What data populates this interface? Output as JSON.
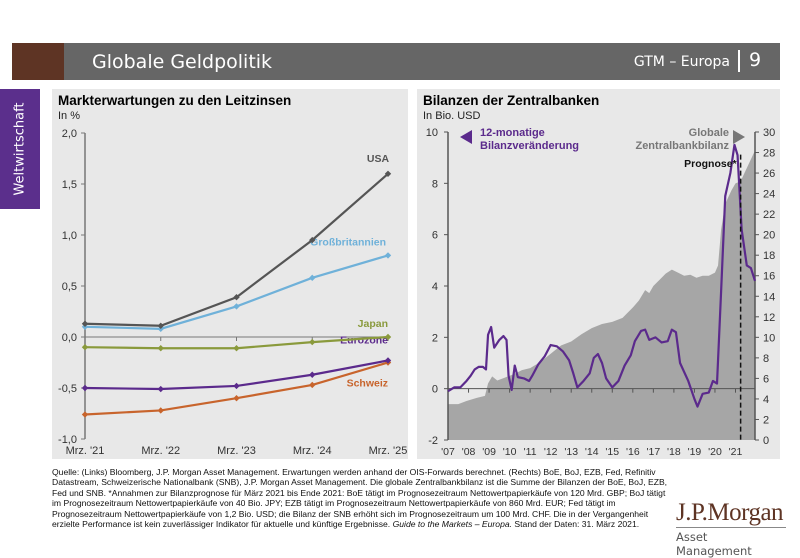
{
  "header": {
    "title": "Globale Geldpolitik",
    "series_label": "GTM – Europa",
    "page_number": "9"
  },
  "side_tab": {
    "label": "Weltwirtschaft"
  },
  "colors": {
    "header_bar": "#666666",
    "header_accent": "#5e3424",
    "side_tab": "#5b2f8c",
    "panel_bg": "#e8e8e8",
    "usa": "#555555",
    "uk": "#6fb1d9",
    "japan": "#8a9a3c",
    "eurozone": "#5b2a8c",
    "schweiz": "#c8642c",
    "balance_area": "#a6a6a6",
    "balance_change_line": "#5b2a8c"
  },
  "chart_data": [
    {
      "type": "line",
      "title": "Markterwartungen zu den Leitzinsen",
      "subtitle": "In %",
      "xlabel": "",
      "ylabel": "In %",
      "categories": [
        "Mrz. '21",
        "Mrz. '22",
        "Mrz. '23",
        "Mrz. '24",
        "Mrz. '25"
      ],
      "ylim": [
        -1.0,
        2.0
      ],
      "yticks": [
        -1.0,
        -0.5,
        0.0,
        0.5,
        1.0,
        1.5,
        2.0
      ],
      "ytick_labels": [
        "-1,0",
        "-0,5",
        "0,0",
        "0,5",
        "1,0",
        "1,5",
        "2,0"
      ],
      "grid": false,
      "series": [
        {
          "name": "USA",
          "color": "#555555",
          "values": [
            0.13,
            0.11,
            0.39,
            0.95,
            1.6
          ]
        },
        {
          "name": "Großbritannien",
          "color": "#6fb1d9",
          "values": [
            0.1,
            0.08,
            0.3,
            0.58,
            0.8
          ]
        },
        {
          "name": "Japan",
          "color": "#8a9a3c",
          "values": [
            -0.1,
            -0.11,
            -0.11,
            -0.05,
            0.0
          ]
        },
        {
          "name": "Eurozone",
          "color": "#5b2a8c",
          "values": [
            -0.5,
            -0.51,
            -0.48,
            -0.37,
            -0.23
          ]
        },
        {
          "name": "Schweiz",
          "color": "#c8642c",
          "values": [
            -0.76,
            -0.72,
            -0.6,
            -0.47,
            -0.25
          ]
        }
      ]
    },
    {
      "type": "area",
      "title": "Bilanzen der Zentralbanken",
      "subtitle": "In Bio. USD",
      "xlabel": "",
      "categories": [
        "'07",
        "'08",
        "'09",
        "'10",
        "'11",
        "'12",
        "'13",
        "'14",
        "'15",
        "'16",
        "'17",
        "'18",
        "'19",
        "'20",
        "'21"
      ],
      "x_range": [
        2007.0,
        2021.95
      ],
      "ylim_left": [
        -2,
        10
      ],
      "yticks_left": [
        -2,
        0,
        2,
        4,
        6,
        8,
        10
      ],
      "ylim_right": [
        0,
        30
      ],
      "yticks_right": [
        0,
        2,
        4,
        6,
        8,
        10,
        12,
        14,
        16,
        18,
        20,
        22,
        24,
        26,
        28,
        30
      ],
      "grid": false,
      "annotations": {
        "left_series_label": "12-monatige Bilanzveränderung",
        "right_series_label": "Globale Zentralbankbilanz",
        "forecast_label": "Prognose*",
        "forecast_start": 2021.25
      },
      "series": [
        {
          "name": "Globale Zentralbankbilanz",
          "axis": "right",
          "kind": "area",
          "color": "#a6a6a6",
          "points": [
            [
              2007.0,
              3.5
            ],
            [
              2007.5,
              3.5
            ],
            [
              2007.9,
              3.8
            ],
            [
              2008.4,
              4.1
            ],
            [
              2008.8,
              4.3
            ],
            [
              2008.95,
              5.5
            ],
            [
              2009.15,
              6.2
            ],
            [
              2009.4,
              5.8
            ],
            [
              2009.8,
              6.1
            ],
            [
              2010.2,
              6.4
            ],
            [
              2010.6,
              6.8
            ],
            [
              2011.0,
              7.0
            ],
            [
              2011.5,
              7.6
            ],
            [
              2012.0,
              8.4
            ],
            [
              2012.5,
              9.2
            ],
            [
              2013.0,
              9.6
            ],
            [
              2013.5,
              10.3
            ],
            [
              2014.0,
              10.9
            ],
            [
              2014.5,
              11.3
            ],
            [
              2015.0,
              11.5
            ],
            [
              2015.5,
              11.9
            ],
            [
              2016.0,
              12.9
            ],
            [
              2016.3,
              13.6
            ],
            [
              2016.6,
              14.6
            ],
            [
              2016.8,
              14.3
            ],
            [
              2017.0,
              15.0
            ],
            [
              2017.3,
              15.6
            ],
            [
              2017.6,
              16.2
            ],
            [
              2017.9,
              16.6
            ],
            [
              2018.2,
              16.3
            ],
            [
              2018.5,
              16.0
            ],
            [
              2018.8,
              16.1
            ],
            [
              2019.1,
              15.8
            ],
            [
              2019.4,
              16.0
            ],
            [
              2019.7,
              16.0
            ],
            [
              2020.0,
              16.3
            ],
            [
              2020.15,
              17.0
            ],
            [
              2020.3,
              20.5
            ],
            [
              2020.5,
              23.0
            ],
            [
              2020.8,
              24.3
            ],
            [
              2021.0,
              25.0
            ],
            [
              2021.25,
              25.2
            ],
            [
              2021.95,
              28.2
            ]
          ]
        },
        {
          "name": "12-monatige Bilanzveränderung",
          "axis": "left",
          "kind": "line",
          "color": "#5b2a8c",
          "points": [
            [
              2007.0,
              -0.1
            ],
            [
              2007.3,
              0.05
            ],
            [
              2007.6,
              0.05
            ],
            [
              2007.9,
              0.3
            ],
            [
              2008.1,
              0.5
            ],
            [
              2008.3,
              0.75
            ],
            [
              2008.5,
              0.85
            ],
            [
              2008.7,
              0.85
            ],
            [
              2008.85,
              0.75
            ],
            [
              2008.95,
              2.1
            ],
            [
              2009.1,
              2.4
            ],
            [
              2009.25,
              1.6
            ],
            [
              2009.5,
              1.9
            ],
            [
              2009.7,
              2.05
            ],
            [
              2009.85,
              1.9
            ],
            [
              2009.95,
              0.5
            ],
            [
              2010.1,
              -0.05
            ],
            [
              2010.25,
              0.9
            ],
            [
              2010.4,
              0.45
            ],
            [
              2010.7,
              0.4
            ],
            [
              2010.95,
              0.3
            ],
            [
              2011.1,
              0.5
            ],
            [
              2011.4,
              0.95
            ],
            [
              2011.7,
              1.25
            ],
            [
              2012.0,
              1.7
            ],
            [
              2012.3,
              1.65
            ],
            [
              2012.6,
              1.45
            ],
            [
              2012.9,
              1.1
            ],
            [
              2013.1,
              0.6
            ],
            [
              2013.3,
              0.05
            ],
            [
              2013.6,
              0.3
            ],
            [
              2013.9,
              0.6
            ],
            [
              2014.1,
              1.2
            ],
            [
              2014.3,
              1.35
            ],
            [
              2014.5,
              1.0
            ],
            [
              2014.7,
              0.4
            ],
            [
              2015.0,
              0.05
            ],
            [
              2015.3,
              0.3
            ],
            [
              2015.6,
              0.9
            ],
            [
              2015.9,
              1.3
            ],
            [
              2016.1,
              1.85
            ],
            [
              2016.4,
              2.25
            ],
            [
              2016.6,
              2.3
            ],
            [
              2016.8,
              1.9
            ],
            [
              2017.1,
              2.0
            ],
            [
              2017.4,
              1.8
            ],
            [
              2017.7,
              1.85
            ],
            [
              2017.9,
              2.3
            ],
            [
              2018.1,
              2.2
            ],
            [
              2018.3,
              1.0
            ],
            [
              2018.7,
              0.3
            ],
            [
              2019.0,
              -0.4
            ],
            [
              2019.15,
              -0.7
            ],
            [
              2019.4,
              -0.2
            ],
            [
              2019.7,
              -0.15
            ],
            [
              2019.9,
              0.3
            ],
            [
              2020.1,
              0.2
            ],
            [
              2020.3,
              3.8
            ],
            [
              2020.5,
              7.5
            ],
            [
              2020.75,
              8.4
            ],
            [
              2020.95,
              9.5
            ],
            [
              2021.1,
              9.1
            ],
            [
              2021.3,
              6.2
            ],
            [
              2021.55,
              4.8
            ],
            [
              2021.75,
              4.7
            ],
            [
              2021.95,
              4.2
            ]
          ]
        }
      ]
    }
  ],
  "footnote": {
    "text": "Quelle: (Links) Bloomberg, J.P. Morgan Asset Management. Erwartungen werden anhand der OIS-Forwards berechnet. (Rechts) BoE, BoJ, EZB, Fed, Refinitiv Datastream, Schweizerische Nationalbank (SNB), J.P. Morgan Asset Management. Die globale Zentralbankbilanz ist die Summe der Bilanzen der BoE, BoJ, EZB, Fed und SNB. *Annahmen zur Bilanzprognose für März 2021 bis Ende 2021: BoE tätigt im Prognosezeitraum Nettowertpapierkäufe von 120 Mrd. GBP; BoJ tätigt im Prognosezeitraum Nettowertpapierkäufe von 40 Bio. JPY; EZB tätigt im Prognosezeitraum Nettowertpapierkäufe von 860 Mrd. EUR; Fed tätigt im Prognosezeitraum Nettowertpapierkäufe von 1,2 Bio. USD; die Bilanz der SNB erhöht sich im Prognosezeitraum um 100 Mrd. CHF. Die in der Vergangenheit erzielte Performance ist kein zuverlässiger Indikator für aktuelle und künftige Ergebnisse.",
    "italic": "Guide to the Markets – Europa.",
    "date": "Stand der Daten: 31. März 2021."
  },
  "logo": {
    "main": "J.P.Morgan",
    "sub": "Asset Management"
  }
}
